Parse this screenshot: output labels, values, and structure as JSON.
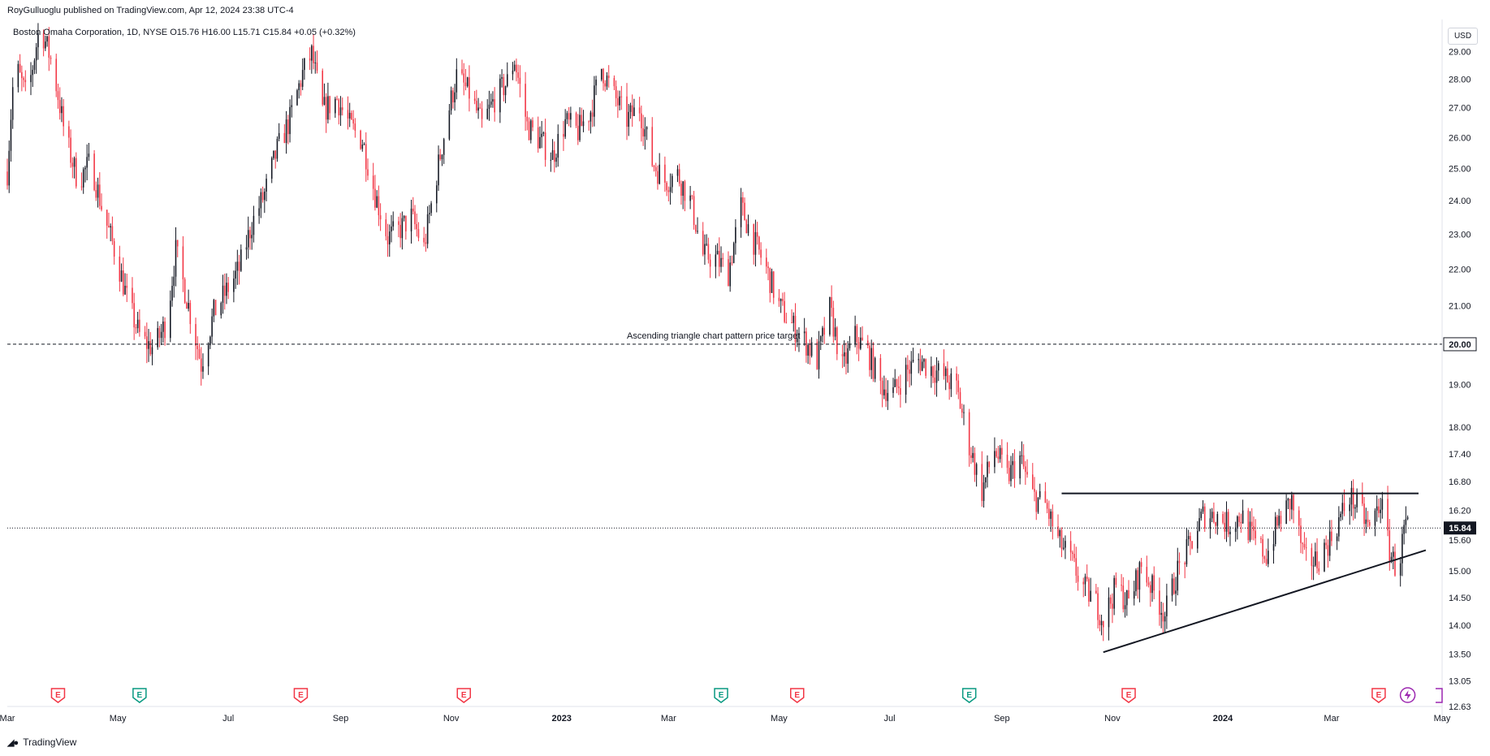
{
  "header": {
    "publisher": "RoyGulluoglu published on TradingView.com, Apr 12, 2024 23:38 UTC-4",
    "legend": "Boston Omaha Corporation, 1D, NYSE  O15.76  H16.00  L15.71  C15.84  +0.05 (+0.32%)",
    "currency": "USD"
  },
  "footer": {
    "logo_text": "TradingView",
    "logo_icon": "tradingview-logo-icon"
  },
  "chart_data": {
    "type": "candlestick",
    "title": "Boston Omaha Corporation, 1D, NYSE",
    "x_range": [
      "2022-03-01",
      "2024-05-01"
    ],
    "y_range": [
      12.63,
      30.2
    ],
    "y_scale": "log",
    "grid": false,
    "x_ticks": [
      {
        "date": "2022-03-01",
        "label": "Mar",
        "bold": false
      },
      {
        "date": "2022-05-01",
        "label": "May",
        "bold": false
      },
      {
        "date": "2022-07-01",
        "label": "Jul",
        "bold": false
      },
      {
        "date": "2022-09-01",
        "label": "Sep",
        "bold": false
      },
      {
        "date": "2022-11-01",
        "label": "Nov",
        "bold": false
      },
      {
        "date": "2023-01-01",
        "label": "2023",
        "bold": true
      },
      {
        "date": "2023-03-01",
        "label": "Mar",
        "bold": false
      },
      {
        "date": "2023-05-01",
        "label": "May",
        "bold": false
      },
      {
        "date": "2023-07-01",
        "label": "Jul",
        "bold": false
      },
      {
        "date": "2023-09-01",
        "label": "Sep",
        "bold": false
      },
      {
        "date": "2023-11-01",
        "label": "Nov",
        "bold": false
      },
      {
        "date": "2024-01-01",
        "label": "2024",
        "bold": true
      },
      {
        "date": "2024-03-01",
        "label": "Mar",
        "bold": false
      },
      {
        "date": "2024-05-01",
        "label": "May",
        "bold": false
      }
    ],
    "y_ticks": [
      "29.00",
      "28.00",
      "27.00",
      "26.00",
      "25.00",
      "24.00",
      "23.00",
      "22.00",
      "21.00",
      "19.00",
      "18.00",
      "17.40",
      "16.80",
      "16.20",
      "15.60",
      "15.00",
      "14.50",
      "14.00",
      "13.50",
      "13.05",
      "12.63"
    ],
    "price_path": [
      [
        "2022-03-01",
        24.9
      ],
      [
        "2022-03-05",
        28.6
      ],
      [
        "2022-03-12",
        27.3
      ],
      [
        "2022-03-19",
        30.0
      ],
      [
        "2022-03-26",
        28.5
      ],
      [
        "2022-04-02",
        26.0
      ],
      [
        "2022-04-09",
        24.6
      ],
      [
        "2022-04-16",
        25.2
      ],
      [
        "2022-04-23",
        23.6
      ],
      [
        "2022-04-30",
        22.4
      ],
      [
        "2022-05-07",
        21.0
      ],
      [
        "2022-05-14",
        20.1
      ],
      [
        "2022-05-21",
        19.9
      ],
      [
        "2022-05-28",
        20.6
      ],
      [
        "2022-06-02",
        22.5
      ],
      [
        "2022-06-09",
        21.0
      ],
      [
        "2022-06-16",
        19.5
      ],
      [
        "2022-06-23",
        20.8
      ],
      [
        "2022-06-30",
        21.4
      ],
      [
        "2022-07-07",
        22.0
      ],
      [
        "2022-07-14",
        23.3
      ],
      [
        "2022-07-21",
        24.2
      ],
      [
        "2022-07-28",
        25.6
      ],
      [
        "2022-08-04",
        26.6
      ],
      [
        "2022-08-11",
        28.2
      ],
      [
        "2022-08-16",
        28.9
      ],
      [
        "2022-08-22",
        26.9
      ],
      [
        "2022-08-30",
        27.3
      ],
      [
        "2022-09-06",
        26.4
      ],
      [
        "2022-09-13",
        25.9
      ],
      [
        "2022-09-20",
        24.2
      ],
      [
        "2022-09-27",
        22.9
      ],
      [
        "2022-10-03",
        23.1
      ],
      [
        "2022-10-10",
        23.5
      ],
      [
        "2022-10-17",
        22.6
      ],
      [
        "2022-10-24",
        24.8
      ],
      [
        "2022-10-31",
        27.0
      ],
      [
        "2022-11-04",
        28.1
      ],
      [
        "2022-11-11",
        27.5
      ],
      [
        "2022-11-18",
        26.4
      ],
      [
        "2022-11-25",
        27.3
      ],
      [
        "2022-12-02",
        27.9
      ],
      [
        "2022-12-06",
        28.7
      ],
      [
        "2022-12-13",
        26.4
      ],
      [
        "2022-12-20",
        25.9
      ],
      [
        "2022-12-27",
        25.4
      ],
      [
        "2023-01-03",
        26.5
      ],
      [
        "2023-01-10",
        26.2
      ],
      [
        "2023-01-17",
        26.9
      ],
      [
        "2023-01-23",
        28.4
      ],
      [
        "2023-01-30",
        27.4
      ],
      [
        "2023-02-06",
        26.6
      ],
      [
        "2023-02-13",
        27.0
      ],
      [
        "2023-02-20",
        25.2
      ],
      [
        "2023-02-27",
        24.6
      ],
      [
        "2023-03-06",
        24.8
      ],
      [
        "2023-03-13",
        24.0
      ],
      [
        "2023-03-20",
        22.4
      ],
      [
        "2023-03-27",
        22.3
      ],
      [
        "2023-04-03",
        21.9
      ],
      [
        "2023-04-10",
        23.8
      ],
      [
        "2023-04-17",
        22.8
      ],
      [
        "2023-04-24",
        22.0
      ],
      [
        "2023-05-01",
        21.0
      ],
      [
        "2023-05-08",
        20.5
      ],
      [
        "2023-05-15",
        20.1
      ],
      [
        "2023-05-22",
        19.6
      ],
      [
        "2023-05-29",
        20.9
      ],
      [
        "2023-06-05",
        19.4
      ],
      [
        "2023-06-12",
        20.2
      ],
      [
        "2023-06-19",
        19.8
      ],
      [
        "2023-06-26",
        19.0
      ],
      [
        "2023-07-03",
        18.8
      ],
      [
        "2023-07-10",
        19.3
      ],
      [
        "2023-07-17",
        19.6
      ],
      [
        "2023-07-24",
        19.4
      ],
      [
        "2023-07-31",
        19.2
      ],
      [
        "2023-08-07",
        18.9
      ],
      [
        "2023-08-14",
        17.6
      ],
      [
        "2023-08-21",
        16.6
      ],
      [
        "2023-08-28",
        17.5
      ],
      [
        "2023-09-04",
        16.9
      ],
      [
        "2023-09-11",
        17.3
      ],
      [
        "2023-09-18",
        16.5
      ],
      [
        "2023-09-25",
        16.3
      ],
      [
        "2023-10-02",
        15.6
      ],
      [
        "2023-10-09",
        15.2
      ],
      [
        "2023-10-16",
        14.7
      ],
      [
        "2023-10-23",
        14.4
      ],
      [
        "2023-10-27",
        14.1
      ],
      [
        "2023-11-03",
        14.7
      ],
      [
        "2023-11-10",
        14.4
      ],
      [
        "2023-11-17",
        15.1
      ],
      [
        "2023-11-24",
        14.6
      ],
      [
        "2023-11-30",
        14.2
      ],
      [
        "2023-12-07",
        15.0
      ],
      [
        "2023-12-14",
        15.5
      ],
      [
        "2023-12-21",
        16.1
      ],
      [
        "2023-12-28",
        16.1
      ],
      [
        "2024-01-04",
        15.9
      ],
      [
        "2024-01-11",
        16.1
      ],
      [
        "2024-01-18",
        15.6
      ],
      [
        "2024-01-25",
        15.3
      ],
      [
        "2024-02-01",
        16.0
      ],
      [
        "2024-02-08",
        16.4
      ],
      [
        "2024-02-15",
        15.2
      ],
      [
        "2024-02-22",
        15.2
      ],
      [
        "2024-02-29",
        15.6
      ],
      [
        "2024-03-04",
        15.9
      ],
      [
        "2024-03-11",
        16.5
      ],
      [
        "2024-03-18",
        16.1
      ],
      [
        "2024-03-22",
        15.8
      ],
      [
        "2024-03-28",
        16.4
      ],
      [
        "2024-04-02",
        15.4
      ],
      [
        "2024-04-05",
        15.1
      ],
      [
        "2024-04-08",
        15.3
      ],
      [
        "2024-04-10",
        15.8
      ],
      [
        "2024-04-12",
        15.84
      ]
    ],
    "annotations": [
      {
        "kind": "horizontal-dashed",
        "price": 20.0,
        "text": "Ascending triangle chart pattern price target",
        "label": "20.00"
      },
      {
        "kind": "horizontal-dotted",
        "price": 15.84,
        "label": "15.84"
      },
      {
        "kind": "resistance-line",
        "from": [
          "2023-10-04",
          16.55
        ],
        "to": [
          "2024-04-18",
          16.55
        ]
      },
      {
        "kind": "support-line",
        "from": [
          "2023-10-27",
          13.53
        ],
        "to": [
          "2024-04-22",
          15.4
        ]
      }
    ],
    "event_markers": [
      {
        "date": "2022-03-29",
        "label": "E",
        "type": "earnings",
        "color": "#f23645"
      },
      {
        "date": "2022-05-13",
        "label": "E",
        "type": "earnings",
        "color": "#089981"
      },
      {
        "date": "2022-08-10",
        "label": "E",
        "type": "earnings",
        "color": "#f23645"
      },
      {
        "date": "2022-11-08",
        "label": "E",
        "type": "earnings",
        "color": "#f23645"
      },
      {
        "date": "2023-03-30",
        "label": "E",
        "type": "earnings",
        "color": "#089981"
      },
      {
        "date": "2023-05-11",
        "label": "E",
        "type": "earnings",
        "color": "#f23645"
      },
      {
        "date": "2023-08-14",
        "label": "E",
        "type": "earnings",
        "color": "#089981"
      },
      {
        "date": "2023-11-10",
        "label": "E",
        "type": "earnings",
        "color": "#f23645"
      },
      {
        "date": "2024-03-27",
        "label": "E",
        "type": "earnings",
        "color": "#f23645"
      },
      {
        "date": "2024-04-12",
        "label": "",
        "type": "lightning-icon",
        "color": "#9c27b0"
      }
    ],
    "colors": {
      "up": "#131722",
      "down": "#f23645",
      "axis_text": "#131722",
      "border": "#e0e3eb"
    }
  }
}
